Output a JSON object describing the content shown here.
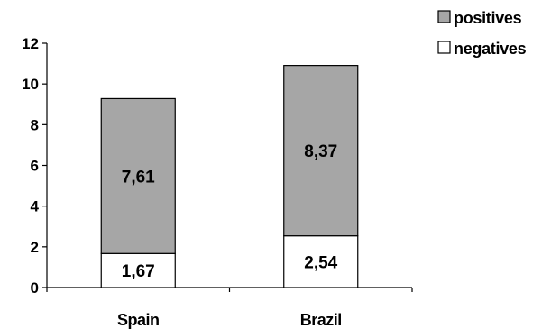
{
  "chart_data": {
    "type": "bar",
    "stacked": true,
    "categories": [
      "Spain",
      "Brazil"
    ],
    "series": [
      {
        "name": "negatives",
        "values": [
          1.67,
          2.54
        ],
        "labels": [
          "1,67",
          "2,54"
        ],
        "color": "#ffffff"
      },
      {
        "name": "positives",
        "values": [
          7.61,
          8.37
        ],
        "labels": [
          "7,61",
          "8,37"
        ],
        "color": "#a6a6a6"
      }
    ],
    "ylim": [
      0,
      12
    ],
    "yticks": [
      "0",
      "2",
      "4",
      "6",
      "8",
      "10",
      "12"
    ],
    "grid": false,
    "legend_position": "top-right",
    "title": "",
    "xlabel": "",
    "ylabel": ""
  }
}
